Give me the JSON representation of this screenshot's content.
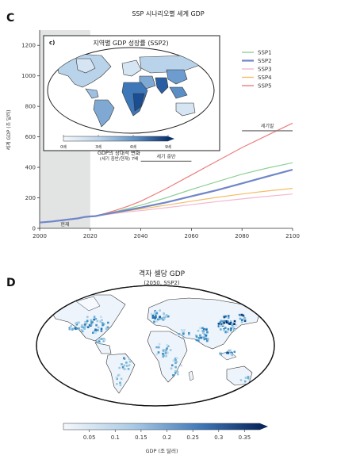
{
  "panel_c": {
    "letter": "C",
    "title": "SSP 시나리오별 세계 GDP",
    "ylabel": "세계 GDP (조 달러)",
    "shade_label": "현재",
    "mid_label": "세기 중반",
    "end_label": "세기말",
    "inset": {
      "letter": "c)",
      "title": "지역별 GDP 성장률 (SSP2)",
      "colorbar_ticks": [
        "0배",
        "3배",
        "6배",
        "9배"
      ],
      "colorbar_label_line1": "GDP의 상대적 변화",
      "colorbar_label_line2": "(세기 중반/현재) 7배"
    }
  },
  "panel_d": {
    "letter": "D",
    "title": "격자 셀당 GDP",
    "subtitle": "(2050, SSP2)",
    "colorbar_ticks": [
      "0.05",
      "0.1",
      "0.15",
      "0.2",
      "0.25",
      "0.3",
      "0.35"
    ],
    "colorbar_label": "GDP (조 달러)"
  },
  "chart_data": [
    {
      "type": "line",
      "title": "SSP 시나리오별 세계 GDP",
      "xlabel": "",
      "ylabel": "세계 GDP (조 달러)",
      "xlim": [
        2000,
        2100
      ],
      "ylim": [
        0,
        1300
      ],
      "xticks": [
        2000,
        2020,
        2040,
        2060,
        2080,
        2100
      ],
      "yticks": [
        0,
        200,
        400,
        600,
        800,
        1000,
        1200
      ],
      "legend_position": "top-right",
      "grid": false,
      "x": [
        2000,
        2005,
        2010,
        2015,
        2018,
        2020,
        2022,
        2025,
        2030,
        2035,
        2040,
        2050,
        2060,
        2070,
        2080,
        2090,
        2100
      ],
      "series": [
        {
          "name": "SSP1",
          "color": "#8fd09a",
          "values": [
            38,
            45,
            55,
            65,
            75,
            78,
            80,
            92,
            110,
            130,
            152,
            200,
            255,
            305,
            355,
            395,
            430
          ]
        },
        {
          "name": "SSP2",
          "color": "#6f86c8",
          "values": [
            38,
            45,
            55,
            65,
            75,
            78,
            80,
            90,
            105,
            120,
            136,
            170,
            210,
            250,
            295,
            340,
            385
          ]
        },
        {
          "name": "SSP3",
          "color": "#f3b8cf",
          "values": [
            38,
            45,
            55,
            65,
            75,
            78,
            80,
            87,
            98,
            108,
            116,
            135,
            155,
            175,
            193,
            210,
            225
          ]
        },
        {
          "name": "SSP4",
          "color": "#f5bd6a",
          "values": [
            38,
            45,
            55,
            65,
            75,
            78,
            80,
            89,
            102,
            115,
            127,
            152,
            178,
            203,
            225,
            245,
            262
          ]
        },
        {
          "name": "SSP5",
          "color": "#ee7d7d",
          "values": [
            38,
            45,
            55,
            65,
            75,
            78,
            80,
            94,
            118,
            145,
            178,
            260,
            350,
            440,
            530,
            610,
            690
          ]
        }
      ],
      "shaded_region": {
        "from": 2000,
        "to": 2020,
        "label": "현재"
      },
      "annotations": [
        {
          "label": "세기 중반",
          "from": 2040,
          "to": 2060,
          "y": 440
        },
        {
          "label": "세기말",
          "from": 2080,
          "to": 2100,
          "y": 640
        }
      ]
    },
    {
      "type": "heatmap",
      "title": "격자 셀당 GDP",
      "subtitle": "(2050, SSP2)",
      "colorbar_range": [
        0.0,
        0.38
      ],
      "colorbar_label": "GDP (조 달러)"
    }
  ]
}
